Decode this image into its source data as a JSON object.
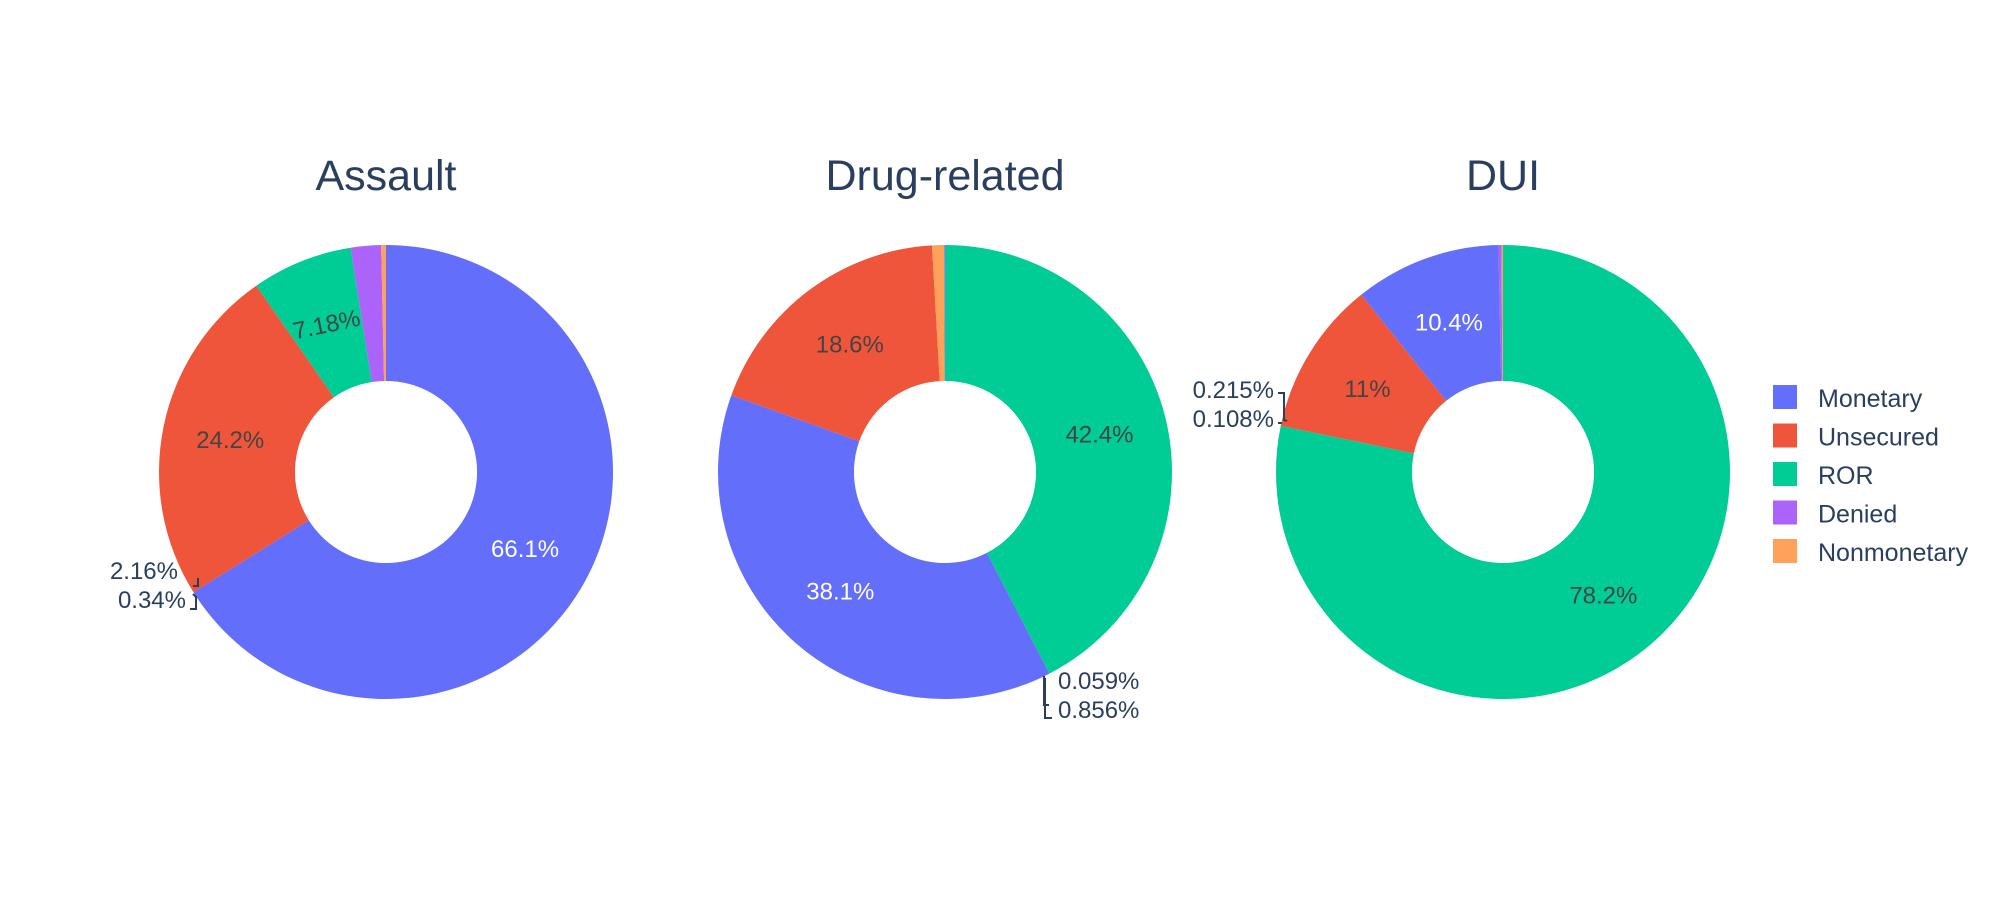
{
  "chart_data": {
    "type": "pie",
    "hole": true,
    "legend_position": "right",
    "categories": [
      "Monetary",
      "Unsecured",
      "ROR",
      "Denied",
      "Nonmonetary"
    ],
    "colors": {
      "Monetary": "#636efa",
      "Unsecured": "#EF553B",
      "ROR": "#00cc96",
      "Denied": "#ab63fa",
      "Nonmonetary": "#FFA15A"
    },
    "pies": [
      {
        "title": "Assault",
        "slices": [
          {
            "label": "Monetary",
            "value": 66.1,
            "text": "66.1%"
          },
          {
            "label": "Unsecured",
            "value": 24.2,
            "text": "24.2%"
          },
          {
            "label": "ROR",
            "value": 7.18,
            "text": "7.18%"
          },
          {
            "label": "Denied",
            "value": 2.16,
            "text": "2.16%"
          },
          {
            "label": "Nonmonetary",
            "value": 0.34,
            "text": "0.34%"
          }
        ]
      },
      {
        "title": "Drug-related",
        "slices": [
          {
            "label": "ROR",
            "value": 42.4,
            "text": "42.4%"
          },
          {
            "label": "Monetary",
            "value": 38.1,
            "text": "38.1%"
          },
          {
            "label": "Unsecured",
            "value": 18.6,
            "text": "18.6%"
          },
          {
            "label": "Nonmonetary",
            "value": 0.856,
            "text": "0.856%"
          },
          {
            "label": "Denied",
            "value": 0.059,
            "text": "0.059%"
          }
        ]
      },
      {
        "title": "DUI",
        "slices": [
          {
            "label": "ROR",
            "value": 78.2,
            "text": "78.2%"
          },
          {
            "label": "Unsecured",
            "value": 11,
            "text": "11%"
          },
          {
            "label": "Monetary",
            "value": 10.4,
            "text": "10.4%"
          },
          {
            "label": "Denied",
            "value": 0.215,
            "text": "0.215%"
          },
          {
            "label": "Nonmonetary",
            "value": 0.108,
            "text": "0.108%"
          }
        ]
      }
    ]
  }
}
